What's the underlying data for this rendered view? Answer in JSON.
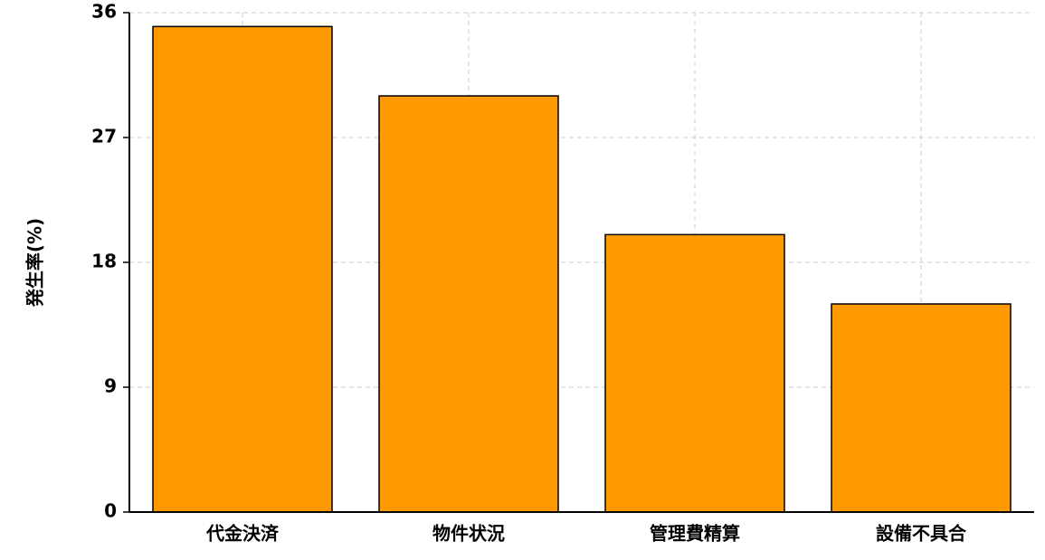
{
  "chart_data": {
    "type": "bar",
    "ylabel": "発生率(%)",
    "categories": [
      "代金決済",
      "物件状況",
      "管理費精算",
      "設備不具合"
    ],
    "values": [
      35,
      30,
      20,
      15
    ],
    "color": "#ff9900",
    "ylim": [
      0,
      36
    ],
    "yticks": [
      0,
      9,
      18,
      27,
      36
    ],
    "grid": true
  }
}
